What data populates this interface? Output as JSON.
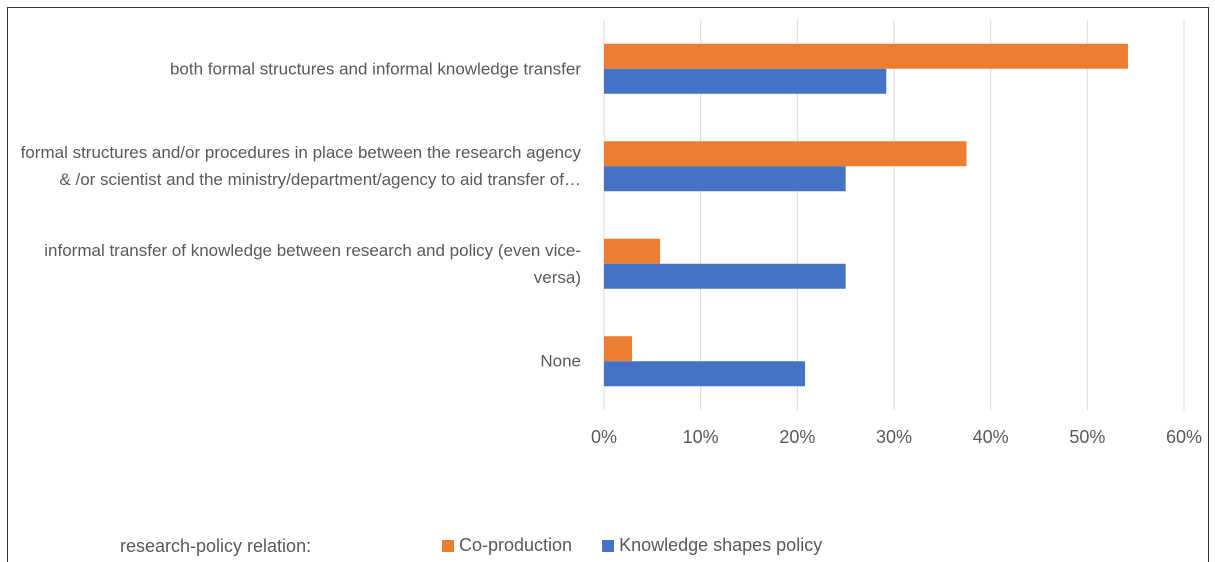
{
  "chart_data": {
    "type": "bar",
    "orientation": "horizontal",
    "categories": [
      "both formal structures and informal knowledge transfer",
      "formal structures and/or procedures in place between the research agency & /or scientist and the ministry/department/agency to aid transfer of…",
      "informal transfer of knowledge between research and policy (even vice-versa)",
      "None"
    ],
    "series": [
      {
        "name": "Co-production",
        "color": "#ed7d31",
        "values": [
          54.2,
          37.5,
          5.8,
          2.9
        ]
      },
      {
        "name": "Knowledge shapes policy",
        "color": "#4472c4",
        "values": [
          29.2,
          25,
          25,
          20.8
        ]
      }
    ],
    "xlim": [
      0,
      60
    ],
    "xticks": [
      {
        "value": 0,
        "label": "0%"
      },
      {
        "value": 10,
        "label": "10%"
      },
      {
        "value": 20,
        "label": "20%"
      },
      {
        "value": 30,
        "label": "30%"
      },
      {
        "value": 40,
        "label": "40%"
      },
      {
        "value": 50,
        "label": "50%"
      },
      {
        "value": 60,
        "label": "60%"
      }
    ],
    "grid": true,
    "legend_title": "research-policy relation:",
    "legend_position": "bottom"
  }
}
